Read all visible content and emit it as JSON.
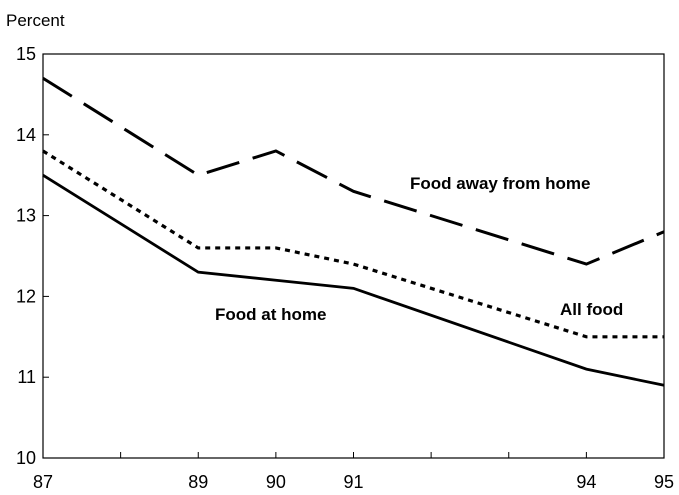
{
  "chart_data": {
    "type": "line",
    "title": "",
    "xlabel": "",
    "ylabel": "Percent",
    "ylim": [
      10,
      15
    ],
    "xlim": [
      87,
      95
    ],
    "x_tick_labels": [
      "87",
      "89",
      "90",
      "91",
      "94",
      "95"
    ],
    "y_tick_labels": [
      "10",
      "11",
      "12",
      "13",
      "14",
      "15"
    ],
    "grid": false,
    "series": [
      {
        "name": "Food away from home",
        "style": "long-dash",
        "x": [
          87,
          89,
          90,
          91,
          94,
          95
        ],
        "values": [
          14.7,
          13.5,
          13.8,
          13.3,
          12.4,
          12.8
        ]
      },
      {
        "name": "All food",
        "style": "dotted",
        "x": [
          87,
          89,
          90,
          91,
          94,
          95
        ],
        "values": [
          13.8,
          12.6,
          12.6,
          12.4,
          11.5,
          11.5
        ]
      },
      {
        "name": "Food at home",
        "style": "solid",
        "x": [
          87,
          89,
          90,
          91,
          94,
          95
        ],
        "values": [
          13.5,
          12.3,
          12.2,
          12.1,
          11.1,
          10.9
        ]
      }
    ],
    "colors": {
      "line": "#000000",
      "axis": "#000000",
      "background": "#ffffff"
    }
  }
}
